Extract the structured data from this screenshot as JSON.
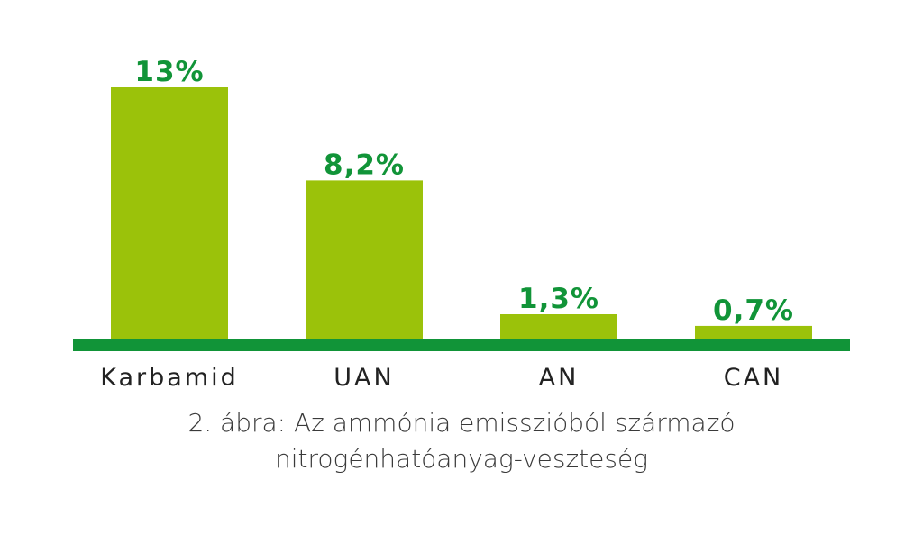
{
  "chart_data": {
    "type": "bar",
    "categories": [
      "Karbamid",
      "UAN",
      "AN",
      "CAN"
    ],
    "values": [
      13,
      8.2,
      1.3,
      0.7
    ],
    "value_labels": [
      "13%",
      "8,2%",
      "1,3%",
      "0,7%"
    ],
    "ylim": [
      0,
      13
    ],
    "grid": false,
    "legend": "none",
    "caption": [
      "2. ábra: Az ammónia emisszióból származó",
      "nitrogénhatóanyag-veszteség"
    ]
  },
  "colors": {
    "bar": "#9bc20a",
    "baseline": "#119438",
    "value_label": "#119438",
    "category_label": "#222222",
    "caption": "#3a3a3a"
  }
}
